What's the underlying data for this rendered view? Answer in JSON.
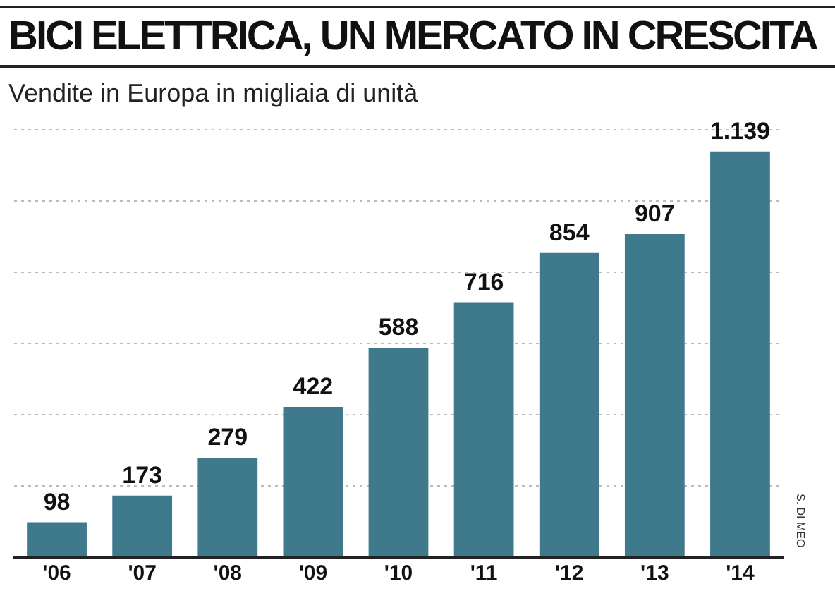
{
  "chart_data": {
    "type": "bar",
    "title": "BICI ELETTRICA, UN MERCATO IN CRESCITA",
    "subtitle": "Vendite in Europa in migliaia di unità",
    "categories": [
      "'06",
      "'07",
      "'08",
      "'09",
      "'10",
      "'11",
      "'12",
      "'13",
      "'14"
    ],
    "values": [
      98,
      173,
      279,
      422,
      588,
      716,
      854,
      907,
      1139
    ],
    "value_labels": [
      "98",
      "173",
      "279",
      "422",
      "588",
      "716",
      "854",
      "907",
      "1.139"
    ],
    "color": "#3f7a8c",
    "grid": "y",
    "tick_labels": "x",
    "annotations": [
      "S. DI MEO"
    ]
  }
}
